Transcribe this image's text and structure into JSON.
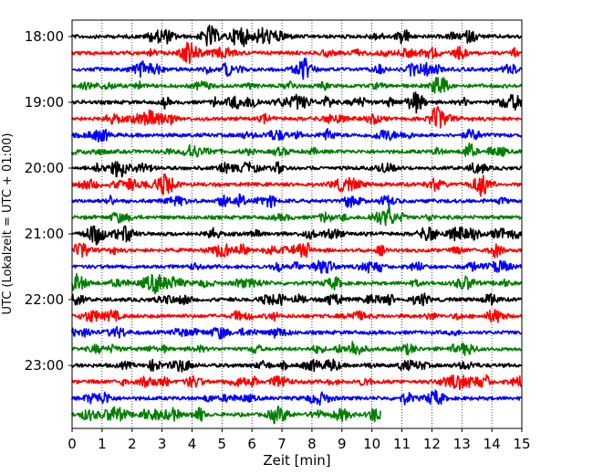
{
  "chart_data": {
    "type": "line",
    "title": "",
    "xlabel": "Zeit  [min]",
    "ylabel": "UTC (Lokalzeit = UTC + 01:00)",
    "xlim": [
      0,
      15
    ],
    "x_ticks": [
      "0",
      "1",
      "2",
      "3",
      "4",
      "5",
      "6",
      "7",
      "8",
      "9",
      "10",
      "11",
      "12",
      "13",
      "14",
      "15"
    ],
    "y_tick_labels": [
      "18:00",
      "19:00",
      "20:00",
      "21:00",
      "22:00",
      "23:00"
    ],
    "grid": "vertical dotted",
    "row_minutes": 15,
    "trace_colors": [
      "#000000",
      "#ff0000",
      "#0000ff",
      "#008000"
    ],
    "series": [
      {
        "start": "18:00",
        "x_end": 15,
        "color": "#000000"
      },
      {
        "start": "18:15",
        "x_end": 15,
        "color": "#ff0000"
      },
      {
        "start": "18:30",
        "x_end": 15,
        "color": "#0000ff"
      },
      {
        "start": "18:45",
        "x_end": 15,
        "color": "#008000"
      },
      {
        "start": "19:00",
        "x_end": 15,
        "color": "#000000"
      },
      {
        "start": "19:15",
        "x_end": 15,
        "color": "#ff0000"
      },
      {
        "start": "19:30",
        "x_end": 15,
        "color": "#0000ff"
      },
      {
        "start": "19:45",
        "x_end": 15,
        "color": "#008000"
      },
      {
        "start": "20:00",
        "x_end": 15,
        "color": "#000000"
      },
      {
        "start": "20:15",
        "x_end": 15,
        "color": "#ff0000"
      },
      {
        "start": "20:30",
        "x_end": 15,
        "color": "#0000ff"
      },
      {
        "start": "20:45",
        "x_end": 15,
        "color": "#008000"
      },
      {
        "start": "21:00",
        "x_end": 15,
        "color": "#000000"
      },
      {
        "start": "21:15",
        "x_end": 15,
        "color": "#ff0000"
      },
      {
        "start": "21:30",
        "x_end": 15,
        "color": "#0000ff"
      },
      {
        "start": "21:45",
        "x_end": 15,
        "color": "#008000"
      },
      {
        "start": "22:00",
        "x_end": 15,
        "color": "#000000"
      },
      {
        "start": "22:15",
        "x_end": 15,
        "color": "#ff0000"
      },
      {
        "start": "22:30",
        "x_end": 15,
        "color": "#0000ff"
      },
      {
        "start": "22:45",
        "x_end": 15,
        "color": "#008000"
      },
      {
        "start": "23:00",
        "x_end": 15,
        "color": "#000000"
      },
      {
        "start": "23:15",
        "x_end": 15,
        "color": "#ff0000"
      },
      {
        "start": "23:30",
        "x_end": 15,
        "color": "#0000ff"
      },
      {
        "start": "23:45",
        "x_end": 10.3,
        "color": "#008000"
      }
    ]
  }
}
